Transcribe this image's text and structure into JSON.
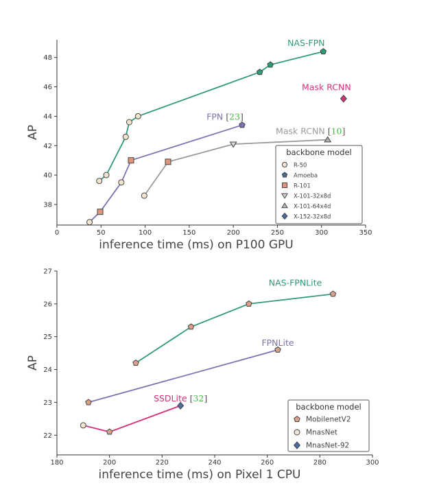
{
  "chart_data": [
    {
      "type": "scatter",
      "title": "",
      "xlabel": "inference time (ms) on P100 GPU",
      "ylabel": "AP",
      "xlim": [
        0,
        350
      ],
      "ylim": [
        36.6,
        49.2
      ],
      "xticks": [
        0,
        50,
        100,
        150,
        200,
        250,
        300,
        350
      ],
      "yticks": [
        38,
        40,
        42,
        44,
        46,
        48
      ],
      "grid": false,
      "legend": {
        "title": "backbone model",
        "position": "bottom-right"
      },
      "legend_entries": [
        {
          "label": "R-50",
          "marker": "circle",
          "color": "#f2e6d0"
        },
        {
          "label": "Amoeba",
          "marker": "pentagon",
          "color": "#3f6f94"
        },
        {
          "label": "R-101",
          "marker": "square",
          "color": "#e0957a"
        },
        {
          "label": "X-101-32x8d",
          "marker": "triangle-down",
          "color": "#d8d8d8"
        },
        {
          "label": "X-101-64x4d",
          "marker": "triangle-up",
          "color": "#b8b8b8"
        },
        {
          "label": "X-152-32x8d",
          "marker": "diamond",
          "color": "#4a6ea0"
        }
      ],
      "series": [
        {
          "name": "NAS-FPN",
          "color": "#2e9a78",
          "label_text": "NAS-FPN",
          "label_ref": "",
          "points": [
            {
              "x": 48,
              "y": 39.6,
              "marker": "circle"
            },
            {
              "x": 56,
              "y": 40.0,
              "marker": "circle"
            },
            {
              "x": 78,
              "y": 42.6,
              "marker": "circle"
            },
            {
              "x": 82,
              "y": 43.6,
              "marker": "circle"
            },
            {
              "x": 92,
              "y": 44.0,
              "marker": "circle"
            },
            {
              "x": 230,
              "y": 47.0,
              "marker": "pentagon"
            },
            {
              "x": 242,
              "y": 47.5,
              "marker": "pentagon"
            },
            {
              "x": 302,
              "y": 48.4,
              "marker": "pentagon"
            }
          ]
        },
        {
          "name": "FPN",
          "color": "#7b72b3",
          "label_text": "FPN",
          "label_ref": "23",
          "points": [
            {
              "x": 37,
              "y": 36.8,
              "marker": "circle"
            },
            {
              "x": 49,
              "y": 37.5,
              "marker": "square"
            },
            {
              "x": 73,
              "y": 39.5,
              "marker": "circle"
            },
            {
              "x": 84,
              "y": 41.0,
              "marker": "square"
            },
            {
              "x": 210,
              "y": 43.4,
              "marker": "pentagon"
            }
          ]
        },
        {
          "name": "Mask RCNN",
          "color": "#9a9a9a",
          "label_text": "Mask RCNN",
          "label_ref": "10",
          "points": [
            {
              "x": 99,
              "y": 38.6,
              "marker": "circle"
            },
            {
              "x": 126,
              "y": 40.9,
              "marker": "square"
            },
            {
              "x": 200,
              "y": 42.1,
              "marker": "triangle-down"
            },
            {
              "x": 307,
              "y": 42.4,
              "marker": "triangle-up"
            }
          ]
        },
        {
          "name": "Mask RCNN",
          "color": "#d6307a",
          "label_text": "Mask RCNN",
          "label_ref": "",
          "points": [
            {
              "x": 325,
              "y": 45.2,
              "marker": "diamond"
            }
          ]
        }
      ]
    },
    {
      "type": "scatter",
      "title": "",
      "xlabel": "inference time (ms) on Pixel 1 CPU",
      "ylabel": "AP",
      "xlim": [
        180,
        300
      ],
      "ylim": [
        21.4,
        27.0
      ],
      "xticks": [
        180,
        200,
        220,
        240,
        260,
        280,
        300
      ],
      "yticks": [
        22,
        23,
        24,
        25,
        26,
        27
      ],
      "grid": false,
      "legend": {
        "title": "backbone model",
        "position": "bottom-right"
      },
      "legend_entries": [
        {
          "label": "MobilenetV2",
          "marker": "pentagon",
          "color": "#d9a08a"
        },
        {
          "label": "MnasNet",
          "marker": "circle",
          "color": "#f2e6d0"
        },
        {
          "label": "MnasNet-92",
          "marker": "diamond",
          "color": "#4a6ea0"
        }
      ],
      "series": [
        {
          "name": "NAS-FPNLite",
          "color": "#2e9a78",
          "label_text": "NAS-FPNLite",
          "label_ref": "",
          "points": [
            {
              "x": 210,
              "y": 24.2,
              "marker": "pentagon"
            },
            {
              "x": 231,
              "y": 25.3,
              "marker": "pentagon"
            },
            {
              "x": 253,
              "y": 26.0,
              "marker": "pentagon"
            },
            {
              "x": 285,
              "y": 26.3,
              "marker": "pentagon"
            }
          ]
        },
        {
          "name": "FPNLite",
          "color": "#7b72b3",
          "label_text": "FPNLite",
          "label_ref": "",
          "points": [
            {
              "x": 192,
              "y": 23.0,
              "marker": "pentagon"
            },
            {
              "x": 264,
              "y": 24.6,
              "marker": "pentagon"
            }
          ]
        },
        {
          "name": "SSDLite",
          "color": "#d6307a",
          "label_text": "SSDLite",
          "label_ref": "32",
          "points": [
            {
              "x": 190,
              "y": 22.3,
              "marker": "circle"
            },
            {
              "x": 200,
              "y": 22.1,
              "marker": "pentagon"
            },
            {
              "x": 227,
              "y": 22.9,
              "marker": "diamond"
            }
          ]
        }
      ]
    }
  ]
}
